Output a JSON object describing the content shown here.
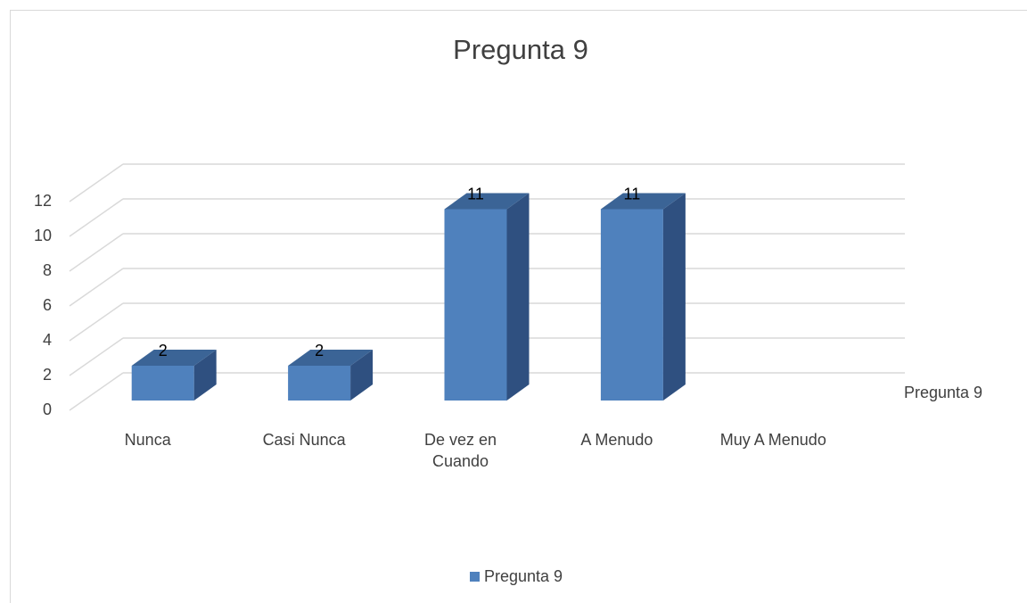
{
  "chart_data": {
    "type": "bar3d",
    "title": "Pregunta 9",
    "categories": [
      "Nunca",
      "Casi Nunca",
      "De vez en Cuando",
      "A Menudo",
      "Muy A Menudo"
    ],
    "series": [
      {
        "name": "Pregunta 9",
        "color": "#4f81bd",
        "values": [
          2,
          2,
          11,
          11,
          null
        ]
      }
    ],
    "ylim": [
      0,
      12
    ],
    "yticks": [
      0,
      2,
      4,
      6,
      8,
      10,
      12
    ],
    "grid": true,
    "legend": "bottom"
  }
}
